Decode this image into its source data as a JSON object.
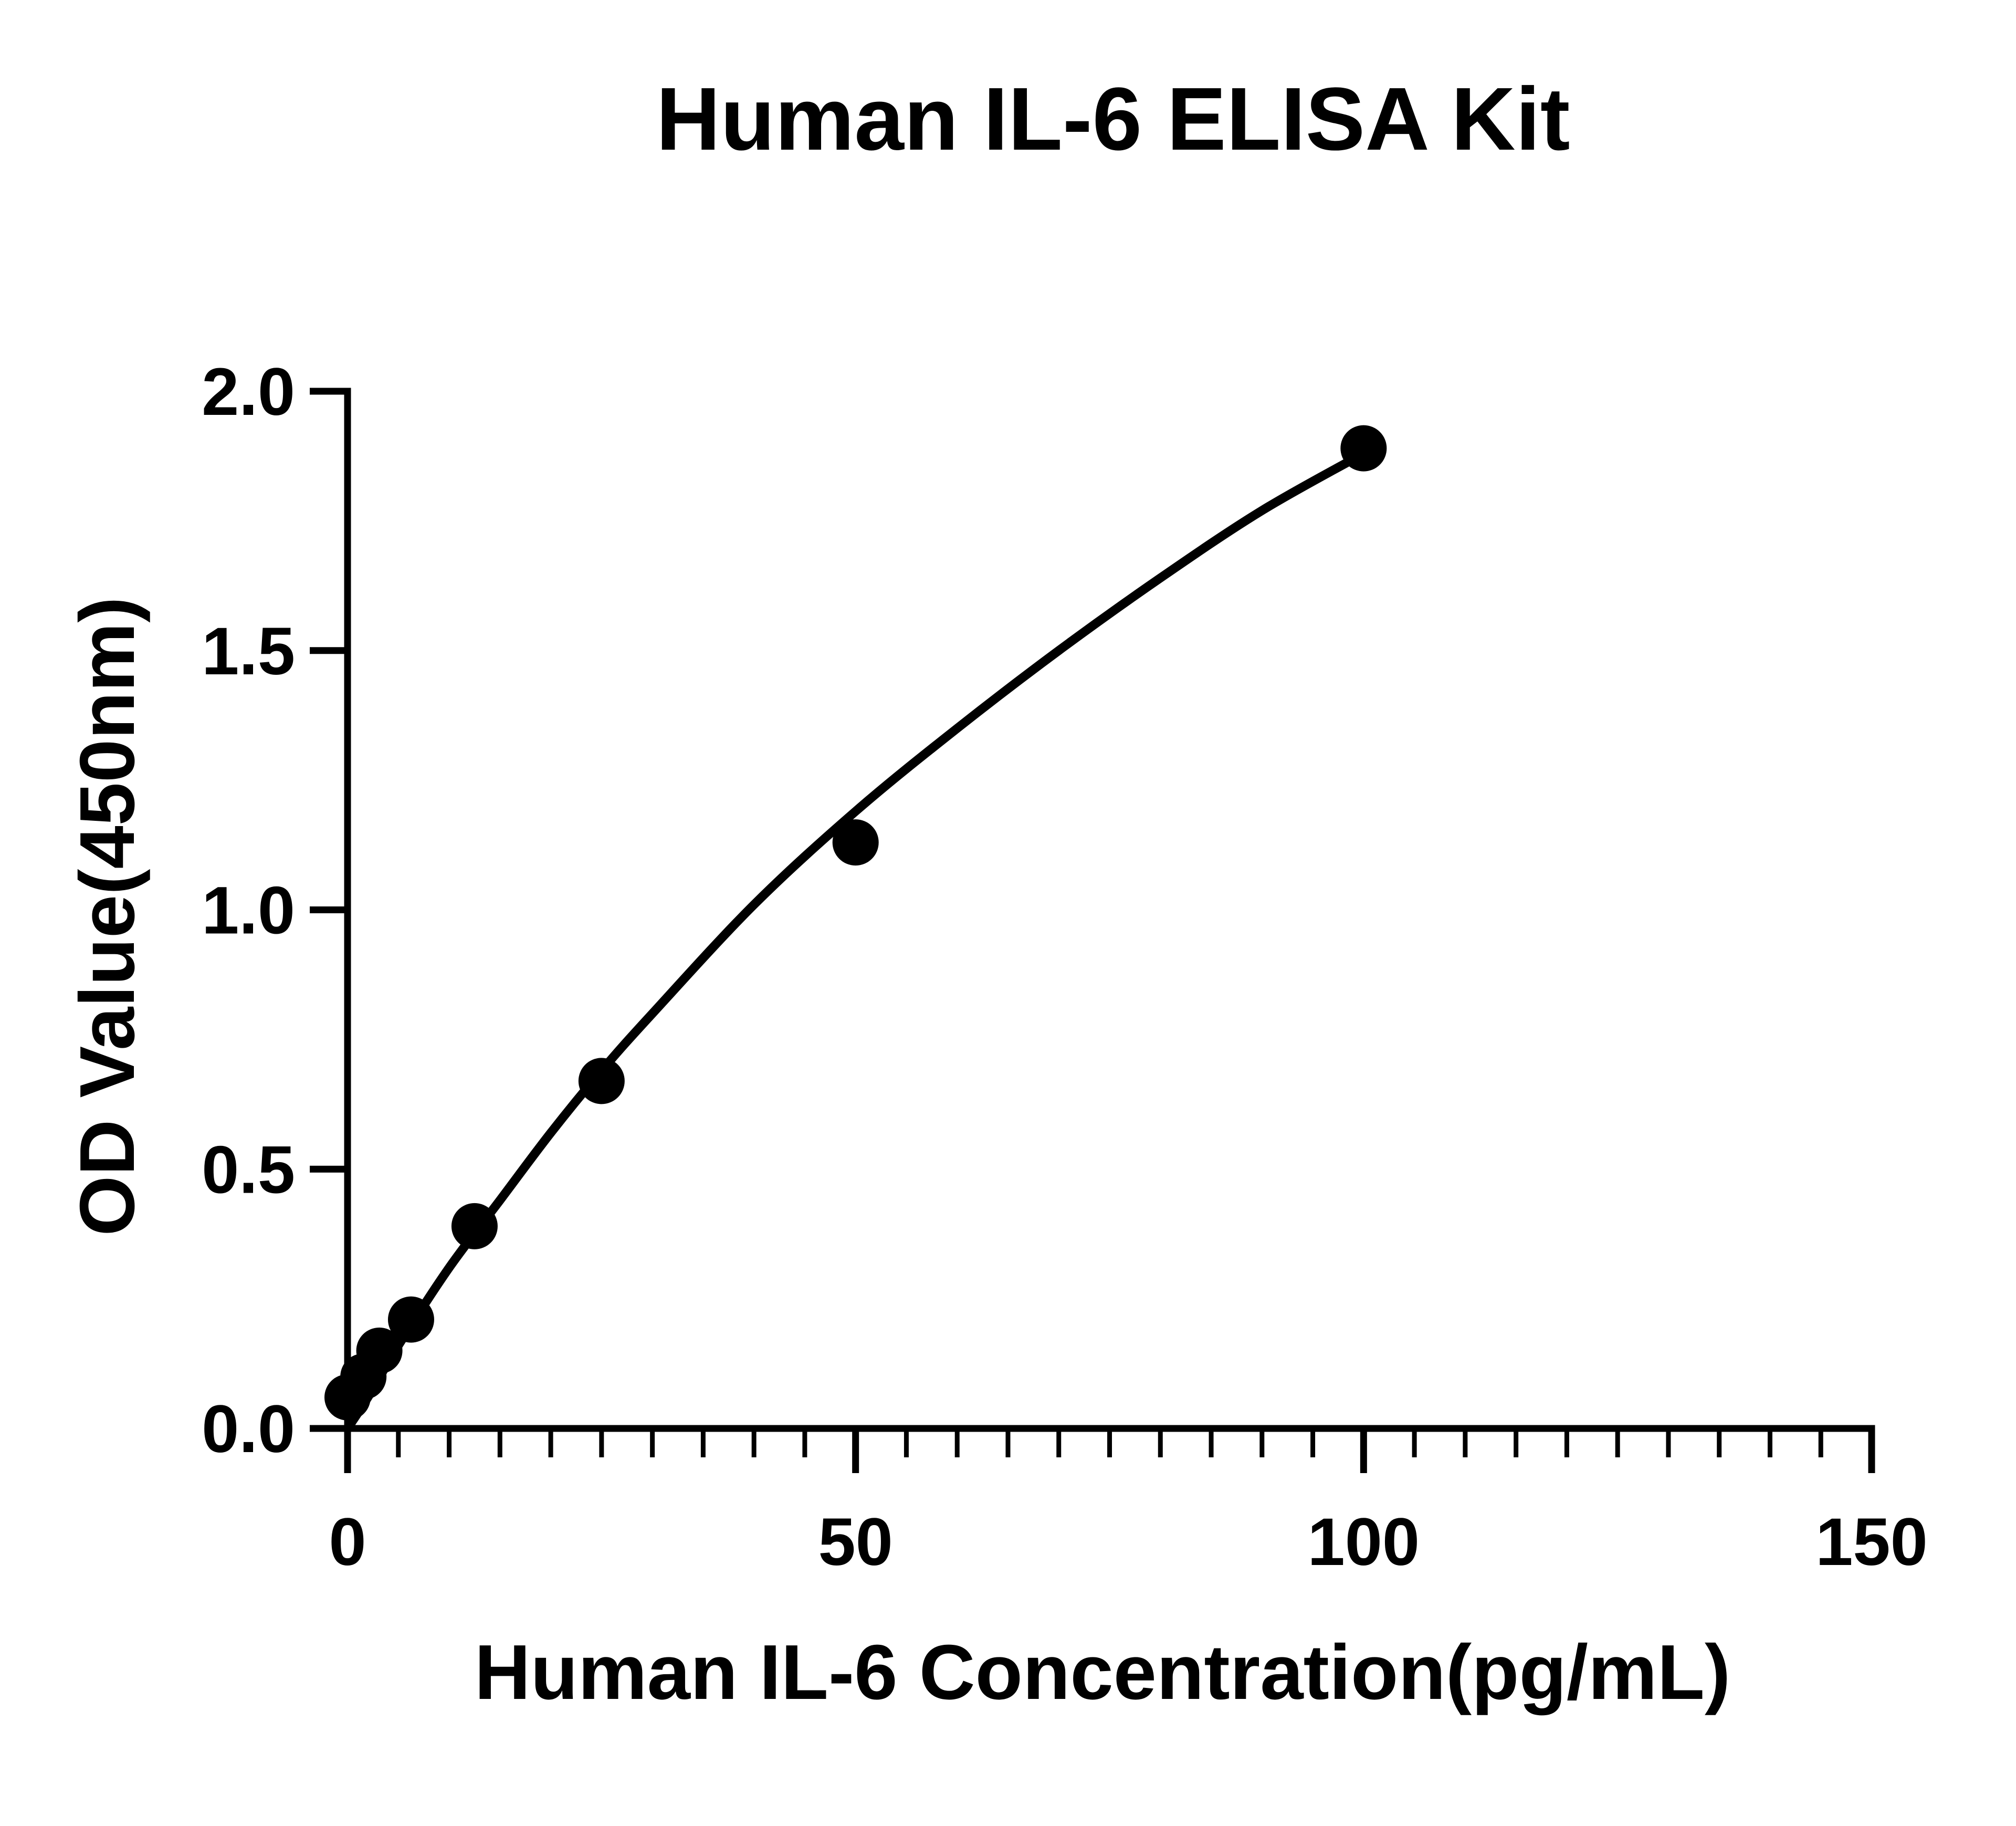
{
  "chart_data": {
    "type": "scatter",
    "title": "Human IL-6 ELISA Kit",
    "xlabel": "Human IL-6 Concentration(pg/mL)",
    "ylabel": "OD Value(450nm)",
    "xlim": [
      0,
      150
    ],
    "ylim": [
      0,
      2.0
    ],
    "x_ticks": [
      "0",
      "50",
      "100",
      "150"
    ],
    "y_ticks": [
      "0.0",
      "0.5",
      "1.0",
      "1.5",
      "2.0"
    ],
    "x_minor_step": 5,
    "grid": false,
    "legend": "none",
    "series": [
      {
        "points": [
          {
            "x": 0,
            "y": 0.06
          },
          {
            "x": 1.56,
            "y": 0.1
          },
          {
            "x": 3.13,
            "y": 0.15
          },
          {
            "x": 6.25,
            "y": 0.21
          },
          {
            "x": 12.5,
            "y": 0.39
          },
          {
            "x": 25,
            "y": 0.67
          },
          {
            "x": 50,
            "y": 1.13
          },
          {
            "x": 100,
            "y": 1.89
          }
        ]
      }
    ],
    "fit_curve": [
      {
        "x": 0,
        "y": 0.0
      },
      {
        "x": 2,
        "y": 0.06
      },
      {
        "x": 5,
        "y": 0.16
      },
      {
        "x": 10,
        "y": 0.31
      },
      {
        "x": 15,
        "y": 0.44
      },
      {
        "x": 20,
        "y": 0.57
      },
      {
        "x": 25,
        "y": 0.69
      },
      {
        "x": 30,
        "y": 0.8
      },
      {
        "x": 40,
        "y": 1.01
      },
      {
        "x": 50,
        "y": 1.19
      },
      {
        "x": 60,
        "y": 1.35
      },
      {
        "x": 70,
        "y": 1.5
      },
      {
        "x": 80,
        "y": 1.64
      },
      {
        "x": 90,
        "y": 1.77
      },
      {
        "x": 100,
        "y": 1.88
      }
    ],
    "colors": {
      "marker": "#000000",
      "line": "#000000",
      "axis": "#000000",
      "background": "#ffffff"
    }
  }
}
